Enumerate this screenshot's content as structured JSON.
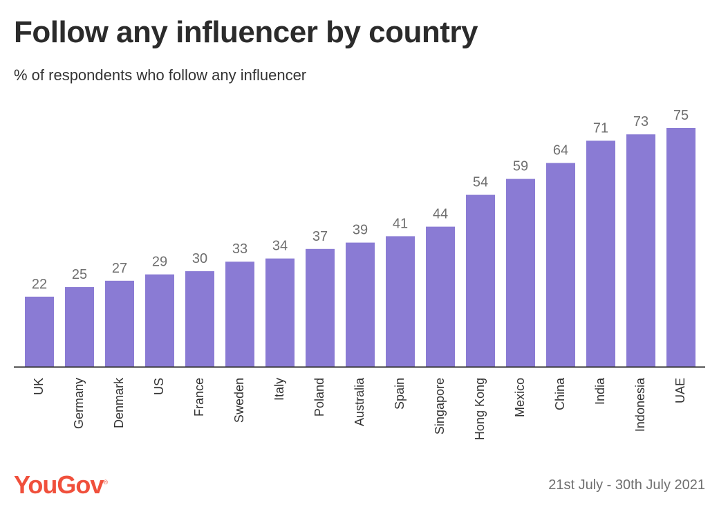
{
  "header": {
    "title": "Follow any influencer by country",
    "subtitle": "% of respondents who follow any influencer"
  },
  "footer": {
    "brand": "YouGov",
    "brand_mark": "®",
    "date_range": "21st July - 30th July 2021"
  },
  "colors": {
    "bar": "#8a7bd4",
    "label": "#6f6f6f",
    "axis": "#333333",
    "brand": "#f0503c"
  },
  "chart_data": {
    "type": "bar",
    "title": "Follow any influencer by country",
    "subtitle": "% of respondents who follow any influencer",
    "categories": [
      "UK",
      "Germany",
      "Denmark",
      "US",
      "France",
      "Sweden",
      "Italy",
      "Poland",
      "Australia",
      "Spain",
      "Singapore",
      "Hong Kong",
      "Mexico",
      "China",
      "India",
      "Indonesia",
      "UAE"
    ],
    "values": [
      22,
      25,
      27,
      29,
      30,
      33,
      34,
      37,
      39,
      41,
      44,
      54,
      59,
      64,
      71,
      73,
      75
    ],
    "ylim": [
      0,
      75
    ],
    "grid": false,
    "legend": "none",
    "data_labels": true,
    "x_tick_rotation": -90
  }
}
